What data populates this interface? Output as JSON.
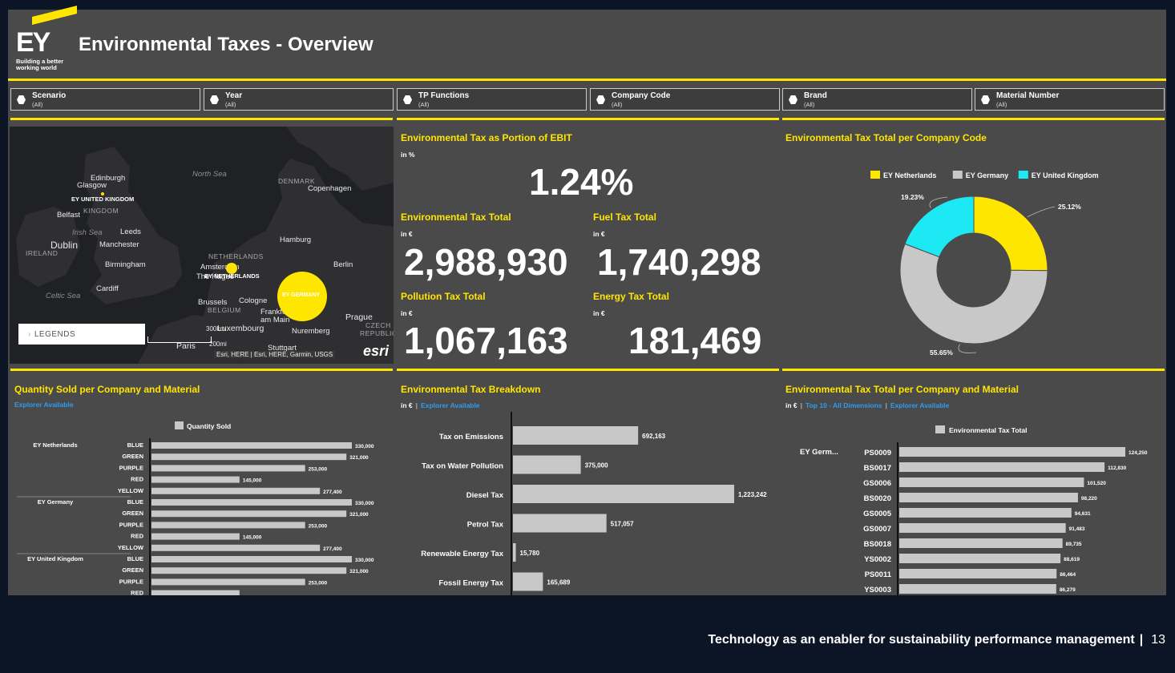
{
  "header": {
    "logo_text": "EY",
    "logo_tagline": "Building a better working world",
    "title": "Environmental Taxes - Overview"
  },
  "filters": [
    {
      "name": "Scenario",
      "value": "(All)"
    },
    {
      "name": "Year",
      "value": "(All)"
    },
    {
      "name": "TP Functions",
      "value": "(All)"
    },
    {
      "name": "Company Code",
      "value": "(All)"
    },
    {
      "name": "Brand",
      "value": "(All)"
    },
    {
      "name": "Material Number",
      "value": "(All)"
    }
  ],
  "map": {
    "labels": {
      "north_sea": "North Sea",
      "irish_sea": "Irish Sea",
      "celtic_sea": "Celtic Sea",
      "denmark": "DENMARK",
      "ireland": "IRELAND",
      "kingdom": "KINGDOM",
      "netherlands": "NETHERLANDS",
      "belgium": "BELGIUM",
      "czech": "CZECH",
      "republic": "REPUBLIC",
      "edinburgh": "Edinburgh",
      "glasgow": "Glasgow",
      "belfast": "Belfast",
      "leeds": "Leeds",
      "dublin": "Dublin",
      "manchester": "Manchester",
      "birmingham": "Birmingham",
      "cardiff": "Cardiff",
      "copenhagen": "Copenhagen",
      "hamburg": "Hamburg",
      "berlin": "Berlin",
      "amsterdam": "Amsterdam",
      "the_hague": "The Hague",
      "brussels": "Brussels",
      "cologne": "Cologne",
      "frankfurt": "Frankfurt am Main",
      "luxembourg": "Luxembourg",
      "nuremberg": "Nuremberg",
      "prague": "Prague",
      "stuttgart": "Stuttgart",
      "paris": "Paris"
    },
    "markers": {
      "uk": "EY UNITED KINGDOM",
      "nl": "EY NETHERLANDS",
      "de": "EY GERMANY"
    },
    "legends_button": "LEGENDS",
    "scale_a": "300km",
    "scale_b": "200mi",
    "attribution": "Esri, HERE | Esri, HERE, Garmin, USGS",
    "esri": "esri"
  },
  "kpis": {
    "ebit": {
      "title": "Environmental Tax as Portion of EBIT",
      "unit": "in %",
      "value": "1.24%"
    },
    "total": {
      "title": "Environmental Tax Total",
      "unit": "in €",
      "value": "2,988,930"
    },
    "fuel": {
      "title": "Fuel Tax Total",
      "unit": "in €",
      "value": "1,740,298"
    },
    "pollution": {
      "title": "Pollution Tax Total",
      "unit": "in €",
      "value": "1,067,163"
    },
    "energy": {
      "title": "Energy Tax Total",
      "unit": "in €",
      "value": "181,469"
    }
  },
  "donut": {
    "title": "Environmental Tax Total per Company Code"
  },
  "qty": {
    "title": "Quantity Sold per Company and Material",
    "sub": "Explorer Available",
    "legend": "Quantity Sold"
  },
  "breakdown": {
    "title": "Environmental Tax Breakdown",
    "unit": "in €",
    "sub": "Explorer Available"
  },
  "material": {
    "title": "Environmental Tax Total per Company and Material",
    "unit": "in €",
    "sub1": "Top 10 - All Dimensions",
    "sub2": "Explorer Available",
    "legend": "Environmental Tax Total",
    "company": "EY Germ..."
  },
  "footer": {
    "text": "Technology as an enabler for sustainability performance management",
    "page": "13"
  },
  "colors": {
    "accent": "#ffe600",
    "panel": "#4a4a4a",
    "background": "#0b1526",
    "cyan": "#1de9f5",
    "grey_bar": "#c8c8c8",
    "link": "#2f9cf0"
  },
  "chart_data": [
    {
      "type": "pie",
      "title": "Environmental Tax Total per Company Code",
      "categories": [
        "EY Netherlands",
        "EY Germany",
        "EY United Kingdom"
      ],
      "values": [
        25.12,
        55.65,
        19.23
      ],
      "labels": [
        "25.12%",
        "55.65%",
        "19.23%"
      ],
      "colors": [
        "#ffe600",
        "#c8c8c8",
        "#1de9f5"
      ],
      "legend": "top"
    },
    {
      "type": "bar",
      "title": "Quantity Sold per Company and Material",
      "groups": [
        "EY Netherlands",
        "EY Germany",
        "EY United Kingdom"
      ],
      "categories": [
        "BLUE",
        "GREEN",
        "PURPLE",
        "RED",
        "YELLOW",
        "BLUE",
        "GREEN",
        "PURPLE",
        "RED",
        "YELLOW",
        "BLUE",
        "GREEN",
        "PURPLE",
        "RED"
      ],
      "group_index": [
        0,
        0,
        0,
        0,
        0,
        1,
        1,
        1,
        1,
        1,
        2,
        2,
        2,
        2
      ],
      "values": [
        330000,
        321000,
        253000,
        145000,
        277400,
        330000,
        321000,
        253000,
        145000,
        277400,
        330000,
        321000,
        253000,
        145000
      ],
      "value_labels": [
        "330,000",
        "321,000",
        "253,000",
        "145,000",
        "277,400",
        "330,000",
        "321,000",
        "253,000",
        "145,000",
        "277,400",
        "330,000",
        "321,000",
        "253,000",
        ""
      ],
      "series_name": "Quantity Sold"
    },
    {
      "type": "bar",
      "title": "Environmental Tax Breakdown",
      "categories": [
        "Tax on Emissions",
        "Tax on Water Pollution",
        "Diesel Tax",
        "Petrol Tax",
        "Renewable Energy Tax",
        "Fossil Energy Tax"
      ],
      "values": [
        692163,
        375000,
        1223242,
        517057,
        15780,
        165689
      ],
      "value_labels": [
        "692,163",
        "375,000",
        "1,223,242",
        "517,057",
        "15,780",
        "165,689"
      ]
    },
    {
      "type": "bar",
      "title": "Environmental Tax Total per Company and Material",
      "categories": [
        "PS0009",
        "BS0017",
        "GS0006",
        "BS0020",
        "GS0005",
        "GS0007",
        "BS0018",
        "YS0002",
        "PS0011",
        "YS0003"
      ],
      "values": [
        124250,
        112830,
        101520,
        98220,
        94631,
        91483,
        89735,
        88619,
        86464,
        86279
      ],
      "value_labels": [
        "124,250",
        "112,830",
        "101,520",
        "98,220",
        "94,631",
        "91,483",
        "89,735",
        "88,619",
        "86,464",
        "86,279"
      ],
      "series_name": "Environmental Tax Total"
    }
  ]
}
